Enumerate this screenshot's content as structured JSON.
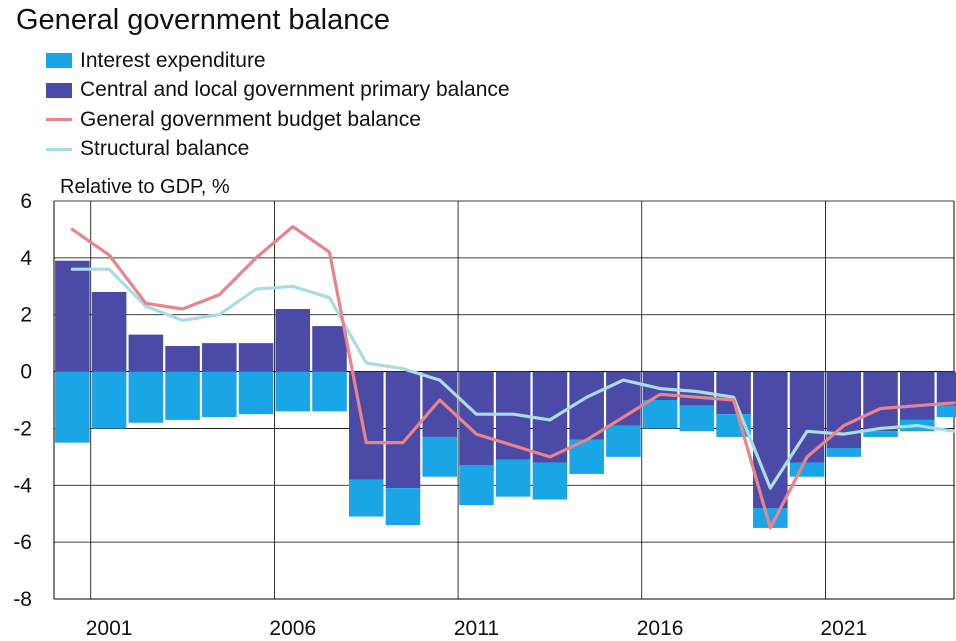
{
  "chart_data": {
    "type": "bar",
    "title": "General government balance",
    "ylabel": "Relative to GDP, %",
    "ylim": [
      -8,
      6
    ],
    "yticks": [
      "6",
      "4",
      "2",
      "0",
      "-2",
      "-4",
      "-6",
      "-8"
    ],
    "xtick_labels": [
      "2001",
      "2006",
      "2011",
      "2016",
      "2021"
    ],
    "xtick_years": [
      2001,
      2006,
      2011,
      2016,
      2021
    ],
    "years": [
      2000,
      2001,
      2002,
      2003,
      2004,
      2005,
      2006,
      2007,
      2008,
      2009,
      2010,
      2011,
      2012,
      2013,
      2014,
      2015,
      2016,
      2017,
      2018,
      2019,
      2020,
      2021,
      2022,
      2023,
      2024
    ],
    "legend": {
      "interest": "Interest expenditure",
      "primary": "Central and local government primary balance",
      "budget": "General government budget balance",
      "structural": "Structural balance"
    },
    "colors": {
      "interest": "#1aa5e6",
      "primary": "#4b4aa6",
      "budget": "#e8848a",
      "structural": "#a9dde3"
    },
    "series": [
      {
        "key": "primary",
        "name": "Central and local government primary balance",
        "values": [
          3.9,
          2.8,
          1.3,
          0.9,
          1.0,
          1.0,
          2.2,
          1.6,
          -3.8,
          -4.1,
          -2.3,
          -3.3,
          -3.1,
          -3.2,
          -2.4,
          -1.9,
          -1.0,
          -1.2,
          -1.5,
          -4.8,
          -3.2,
          -2.7,
          -2.1,
          -1.7,
          -1.2
        ]
      },
      {
        "key": "interest",
        "name": "Interest expenditure",
        "values": [
          -2.5,
          -2.0,
          -1.8,
          -1.7,
          -1.6,
          -1.5,
          -1.4,
          -1.4,
          -1.3,
          -1.3,
          -1.4,
          -1.4,
          -1.3,
          -1.3,
          -1.2,
          -1.1,
          -1.0,
          -0.9,
          -0.8,
          -0.7,
          -0.5,
          -0.3,
          -0.2,
          -0.4,
          -0.4
        ]
      },
      {
        "key": "budget",
        "name": "General government budget balance",
        "values": [
          5.0,
          4.1,
          2.4,
          2.2,
          2.7,
          4.0,
          5.1,
          4.2,
          -2.5,
          -2.5,
          -1.0,
          -2.2,
          -2.6,
          -3.0,
          -2.4,
          -1.6,
          -0.8,
          -0.9,
          -1.0,
          -5.5,
          -3.0,
          -1.9,
          -1.3,
          -1.2,
          -1.1
        ]
      },
      {
        "key": "structural",
        "name": "Structural balance",
        "values": [
          3.6,
          3.6,
          2.3,
          1.8,
          2.0,
          2.9,
          3.0,
          2.6,
          0.3,
          0.1,
          -0.3,
          -1.5,
          -1.5,
          -1.7,
          -0.9,
          -0.3,
          -0.6,
          -0.7,
          -0.9,
          -4.1,
          -2.1,
          -2.2,
          -2.0,
          -1.9,
          -2.1
        ]
      }
    ]
  }
}
